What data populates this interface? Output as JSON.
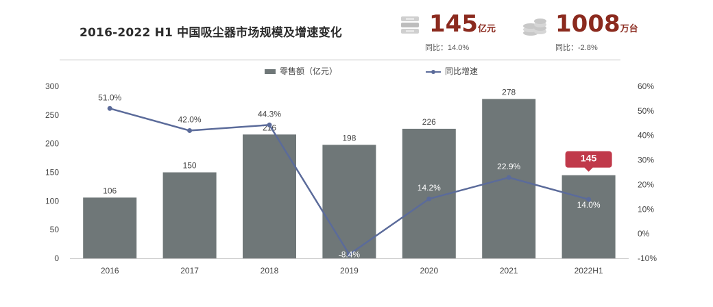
{
  "header": {
    "title": "2016-2022 H1 中国吸尘器市场规模及增速变化",
    "stat1": {
      "value": "145",
      "unit": "亿元",
      "sub": "同比：14.0%"
    },
    "stat2": {
      "value": "1008",
      "unit": "万台",
      "sub": "同比：-2.8%"
    }
  },
  "legend": {
    "bar": "零售额（亿元）",
    "line": "同比增速"
  },
  "colors": {
    "bar": "#6f7778",
    "line": "#5b6b9a",
    "accent": "#8b2a1e",
    "callout": "#c0394a"
  },
  "chart_data": {
    "type": "bar",
    "categories": [
      "2016",
      "2017",
      "2018",
      "2019",
      "2020",
      "2021",
      "2022H1"
    ],
    "series": [
      {
        "name": "零售额（亿元）",
        "type": "bar",
        "axis": "left",
        "values": [
          106,
          150,
          216,
          198,
          226,
          278,
          145
        ],
        "labels": [
          "106",
          "150",
          "216",
          "198",
          "226",
          "278",
          "145"
        ]
      },
      {
        "name": "同比增速",
        "type": "line",
        "axis": "right",
        "values": [
          51.0,
          42.0,
          44.3,
          -8.4,
          14.2,
          22.9,
          14.0
        ],
        "labels": [
          "51.0%",
          "42.0%",
          "44.3%",
          "-8.4%",
          "14.2%",
          "22.9%",
          "14.0%"
        ]
      }
    ],
    "yLeft": {
      "min": 0,
      "max": 300,
      "ticks": [
        "0",
        "50",
        "100",
        "150",
        "200",
        "250",
        "300"
      ]
    },
    "yRight": {
      "min": -10,
      "max": 60,
      "ticks": [
        "-10%",
        "0%",
        "10%",
        "20%",
        "30%",
        "40%",
        "50%",
        "60%"
      ]
    },
    "callout": "145"
  }
}
